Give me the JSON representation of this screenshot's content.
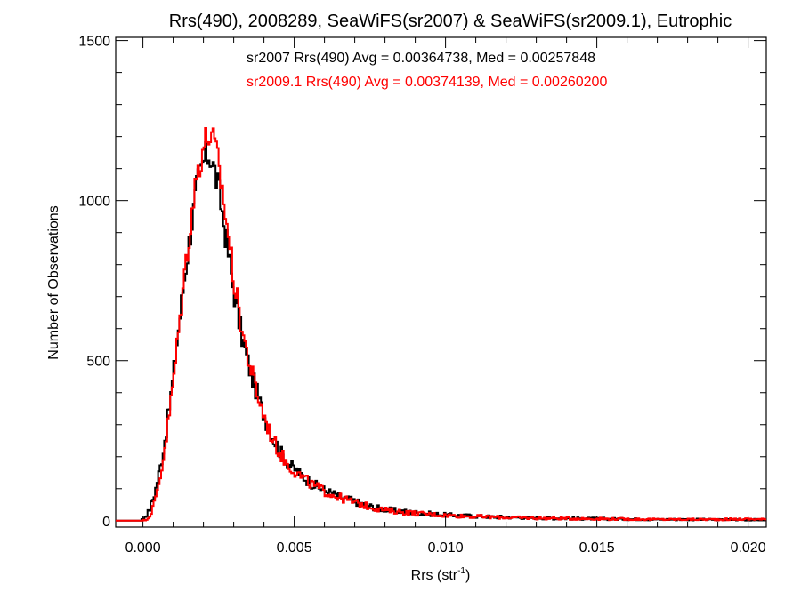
{
  "chart_data": {
    "type": "histogram",
    "title": "Rrs(490), 2008289, SeaWiFS(sr2007) & SeaWiFS(sr2009.1), Eutrophic",
    "xlabel": "Rrs (str",
    "xlabel_sup": "-1",
    "xlabel_close": ")",
    "ylabel": "Number of Observations",
    "xlim": [
      -0.0009,
      0.0206
    ],
    "ylim": [
      -20,
      1510
    ],
    "x_ticks": [
      0.0,
      0.005,
      0.01,
      0.015,
      0.02
    ],
    "x_tick_labels": [
      "0.000",
      "0.005",
      "0.010",
      "0.015",
      "0.020"
    ],
    "y_ticks": [
      0,
      500,
      1000,
      1500
    ],
    "y_tick_labels": [
      "0",
      "500",
      "1000",
      "1500"
    ],
    "grid": false,
    "annotations": [
      {
        "text": "sr2007 Rrs(490) Avg = 0.00364738, Med = 0.00257848",
        "color": "#000000"
      },
      {
        "text": "sr2009.1 Rrs(490) Avg = 0.00374139, Med = 0.00260200",
        "color": "#ff0000"
      }
    ],
    "series": [
      {
        "color": "#000000",
        "points": [
          [
            -0.0009,
            0
          ],
          [
            -0.0001,
            0
          ],
          [
            0.0,
            5
          ],
          [
            0.0002,
            30
          ],
          [
            0.0004,
            90
          ],
          [
            0.0006,
            180
          ],
          [
            0.0008,
            300
          ],
          [
            0.001,
            450
          ],
          [
            0.0012,
            620
          ],
          [
            0.0014,
            780
          ],
          [
            0.0016,
            920
          ],
          [
            0.0018,
            1050
          ],
          [
            0.002,
            1120
          ],
          [
            0.0022,
            1150
          ],
          [
            0.0024,
            1080
          ],
          [
            0.0026,
            980
          ],
          [
            0.0028,
            850
          ],
          [
            0.003,
            720
          ],
          [
            0.0032,
            610
          ],
          [
            0.0034,
            520
          ],
          [
            0.0036,
            450
          ],
          [
            0.0038,
            390
          ],
          [
            0.004,
            330
          ],
          [
            0.0042,
            280
          ],
          [
            0.0045,
            220
          ],
          [
            0.0048,
            180
          ],
          [
            0.0052,
            145
          ],
          [
            0.0056,
            115
          ],
          [
            0.006,
            95
          ],
          [
            0.0065,
            75
          ],
          [
            0.007,
            60
          ],
          [
            0.0075,
            45
          ],
          [
            0.008,
            35
          ],
          [
            0.009,
            25
          ],
          [
            0.01,
            18
          ],
          [
            0.011,
            14
          ],
          [
            0.012,
            11
          ],
          [
            0.013,
            9
          ],
          [
            0.014,
            7
          ],
          [
            0.015,
            6
          ],
          [
            0.016,
            5
          ],
          [
            0.017,
            4
          ],
          [
            0.018,
            4
          ],
          [
            0.019,
            3
          ],
          [
            0.02,
            3
          ],
          [
            0.0206,
            3
          ]
        ]
      },
      {
        "color": "#ff0000",
        "points": [
          [
            -0.0009,
            0
          ],
          [
            0.0,
            0
          ],
          [
            0.0002,
            10
          ],
          [
            0.0004,
            60
          ],
          [
            0.0006,
            150
          ],
          [
            0.0008,
            280
          ],
          [
            0.001,
            430
          ],
          [
            0.0012,
            610
          ],
          [
            0.0014,
            790
          ],
          [
            0.0016,
            950
          ],
          [
            0.0018,
            1090
          ],
          [
            0.002,
            1170
          ],
          [
            0.0022,
            1210
          ],
          [
            0.0024,
            1160
          ],
          [
            0.0026,
            1050
          ],
          [
            0.0028,
            910
          ],
          [
            0.003,
            760
          ],
          [
            0.0032,
            640
          ],
          [
            0.0034,
            540
          ],
          [
            0.0036,
            460
          ],
          [
            0.0038,
            390
          ],
          [
            0.004,
            330
          ],
          [
            0.0042,
            275
          ],
          [
            0.0045,
            215
          ],
          [
            0.0048,
            175
          ],
          [
            0.0052,
            140
          ],
          [
            0.0056,
            112
          ],
          [
            0.006,
            92
          ],
          [
            0.0065,
            72
          ],
          [
            0.007,
            57
          ],
          [
            0.0075,
            43
          ],
          [
            0.008,
            33
          ],
          [
            0.009,
            23
          ],
          [
            0.01,
            17
          ],
          [
            0.011,
            13
          ],
          [
            0.012,
            10
          ],
          [
            0.013,
            8
          ],
          [
            0.014,
            7
          ],
          [
            0.015,
            6
          ],
          [
            0.016,
            5
          ],
          [
            0.017,
            4
          ],
          [
            0.018,
            4
          ],
          [
            0.019,
            4
          ],
          [
            0.02,
            5
          ],
          [
            0.0206,
            4
          ]
        ]
      }
    ]
  }
}
